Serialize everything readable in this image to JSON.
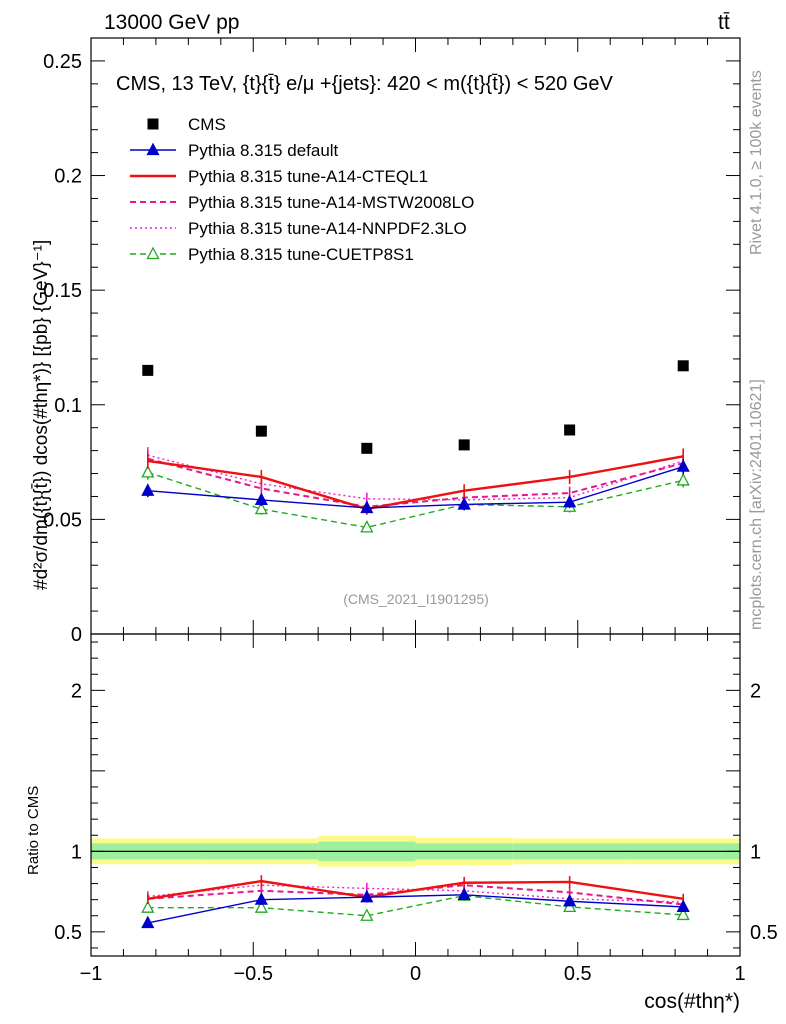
{
  "header": {
    "energy_label": "13000 GeV pp",
    "process_label": "tt̄",
    "side_label_top": "Rivet 4.1.0, ≥ 100k events",
    "side_label_bottom": "mcplots.cern.ch [arXiv:2401.10621]",
    "analysis_id": "(CMS_2021_I1901295)"
  },
  "chart_data": {
    "type": "scatter",
    "title": "CMS, 13 TeV, {t}{t̄} e/μ +{jets}: 420 < m({t}{t̄}) < 520 GeV",
    "xlabel": "cos(#thη*)",
    "ylabel": "#d²σ/dm({t}{t̄}) dcos(#thη*)} [{pb} {GeV}⁻¹]",
    "ratio_ylabel": "Ratio to CMS",
    "xlim": [
      -1,
      1
    ],
    "ylim": [
      0,
      0.26
    ],
    "ratio_ylim": [
      0.35,
      2.35
    ],
    "x": [
      -0.825,
      -0.475,
      -0.15,
      0.15,
      0.475,
      0.825
    ],
    "x_edges": [
      -1,
      -0.65,
      -0.3,
      0,
      0.3,
      0.65,
      1
    ],
    "x_ticks": [
      -1,
      -0.5,
      0,
      0.5,
      1
    ],
    "x_tick_labels": [
      "−1",
      "−0.5",
      "0",
      "0.5",
      "1"
    ],
    "y_ticks": [
      0,
      0.05,
      0.1,
      0.15,
      0.2,
      0.25
    ],
    "y_tick_labels": [
      "0",
      "0.05",
      "0.1",
      "0.15",
      "0.2",
      "0.25"
    ],
    "ratio_ticks": [
      0.5,
      1,
      2
    ],
    "ratio_tick_labels": [
      "0.5",
      "1",
      "2"
    ],
    "data": {
      "name": "CMS",
      "values": [
        0.115,
        0.0885,
        0.081,
        0.0825,
        0.089,
        0.117
      ],
      "band_inner": [
        0.05,
        0.05,
        0.06,
        0.05,
        0.05,
        0.05
      ],
      "band_outer": [
        0.08,
        0.08,
        0.095,
        0.085,
        0.08,
        0.08
      ]
    },
    "series": [
      {
        "name": "Pythia 8.315 default",
        "color": "#0000cc",
        "style": "solid",
        "marker": "triangle-filled",
        "values": [
          0.0625,
          0.0585,
          0.055,
          0.0565,
          0.0575,
          0.073
        ],
        "ratio": [
          0.555,
          0.7,
          0.715,
          0.73,
          0.69,
          0.655
        ]
      },
      {
        "name": "Pythia 8.315 tune-A14-CTEQL1",
        "color": "#ee1111",
        "style": "solid",
        "marker": "none",
        "values": [
          0.0755,
          0.0685,
          0.0545,
          0.0625,
          0.0685,
          0.0775
        ],
        "ratio": [
          0.705,
          0.815,
          0.715,
          0.805,
          0.81,
          0.705
        ]
      },
      {
        "name": "Pythia 8.315 tune-A14-MSTW2008LO",
        "color": "#e8168a",
        "style": "dashed",
        "marker": "none",
        "values": [
          0.0765,
          0.0635,
          0.0555,
          0.0595,
          0.0615,
          0.0745
        ],
        "ratio": [
          0.705,
          0.755,
          0.73,
          0.79,
          0.745,
          0.67
        ]
      },
      {
        "name": "Pythia 8.315 tune-A14-NNPDF2.3LO",
        "color": "#ee22cc",
        "style": "dotted",
        "marker": "none",
        "values": [
          0.078,
          0.0655,
          0.059,
          0.0585,
          0.0595,
          0.0755
        ],
        "ratio": [
          0.72,
          0.79,
          0.77,
          0.755,
          0.705,
          0.685
        ]
      },
      {
        "name": "Pythia 8.315 tune-CUETP8S1",
        "color": "#22aa22",
        "style": "dashed",
        "marker": "triangle-open",
        "values": [
          0.0705,
          0.0545,
          0.0465,
          0.0565,
          0.0555,
          0.067
        ],
        "ratio": [
          0.65,
          0.65,
          0.6,
          0.725,
          0.655,
          0.605
        ]
      }
    ]
  }
}
